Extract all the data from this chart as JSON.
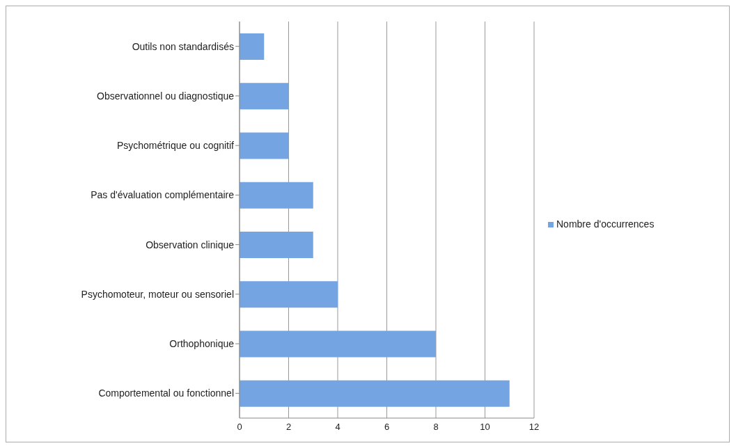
{
  "chart_data": {
    "type": "bar",
    "orientation": "horizontal",
    "categories": [
      "Outils non standardisés",
      "Observationnel ou diagnostique",
      "Psychométrique ou cognitif",
      "Pas d'évaluation complémentaire",
      "Observation clinique",
      "Psychomoteur, moteur ou sensoriel",
      "Orthophonique",
      "Comportemental ou fonctionnel"
    ],
    "series": [
      {
        "name": "Nombre d'occurrences",
        "color": "#74a4e2",
        "values": [
          1,
          2,
          2,
          3,
          3,
          4,
          8,
          11
        ]
      }
    ],
    "xlim": [
      0,
      12
    ],
    "xticks": [
      0,
      2,
      4,
      6,
      8,
      10,
      12
    ],
    "grid": "x",
    "legend": "right"
  }
}
